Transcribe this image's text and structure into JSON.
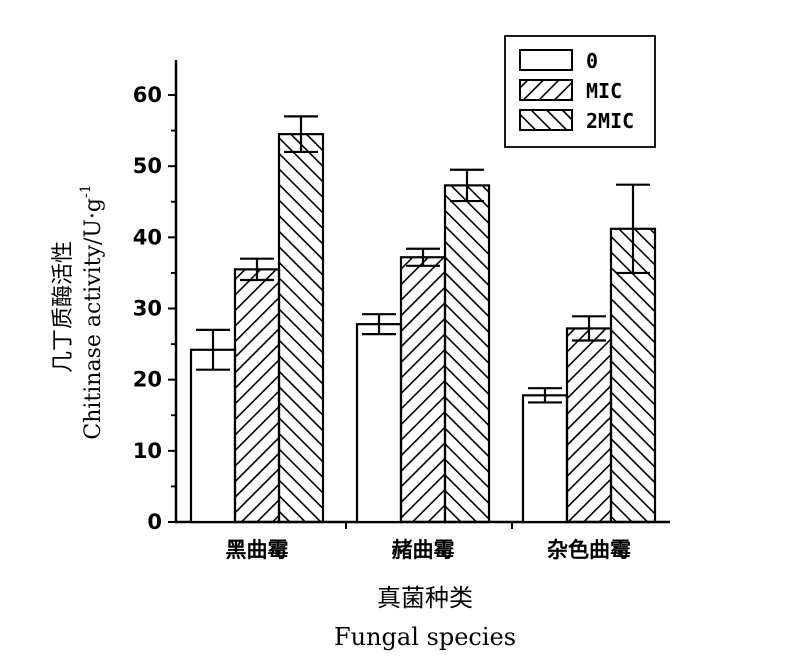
{
  "chart_data": {
    "type": "bar",
    "categories": [
      "黑曲霉",
      "赭曲霉",
      "杂色曲霉"
    ],
    "series": [
      {
        "name": "0",
        "values": [
          24.2,
          27.8,
          17.8
        ],
        "errors": [
          2.8,
          1.4,
          1.0
        ],
        "pattern": "none"
      },
      {
        "name": "MIC",
        "values": [
          35.5,
          37.2,
          27.2
        ],
        "errors": [
          1.5,
          1.2,
          1.7
        ],
        "pattern": "forward-diagonal"
      },
      {
        "name": "2MIC",
        "values": [
          54.5,
          47.3,
          41.2
        ],
        "errors": [
          2.5,
          2.2,
          6.2
        ],
        "pattern": "backward-diagonal"
      }
    ],
    "title": "",
    "ylabel_cn": "几丁质酶活性",
    "ylabel_en": "Chitinase activity/U·g",
    "ylabel_sup": "-1",
    "xlabel_cn": "真菌种类",
    "xlabel_en": "Fungal species",
    "ylim": [
      0,
      65
    ],
    "yticks": [
      0,
      10,
      20,
      30,
      40,
      50,
      60
    ],
    "grid": false,
    "legend": "top-right",
    "colors": {
      "line": "#000000",
      "fill": "#ffffff"
    }
  }
}
